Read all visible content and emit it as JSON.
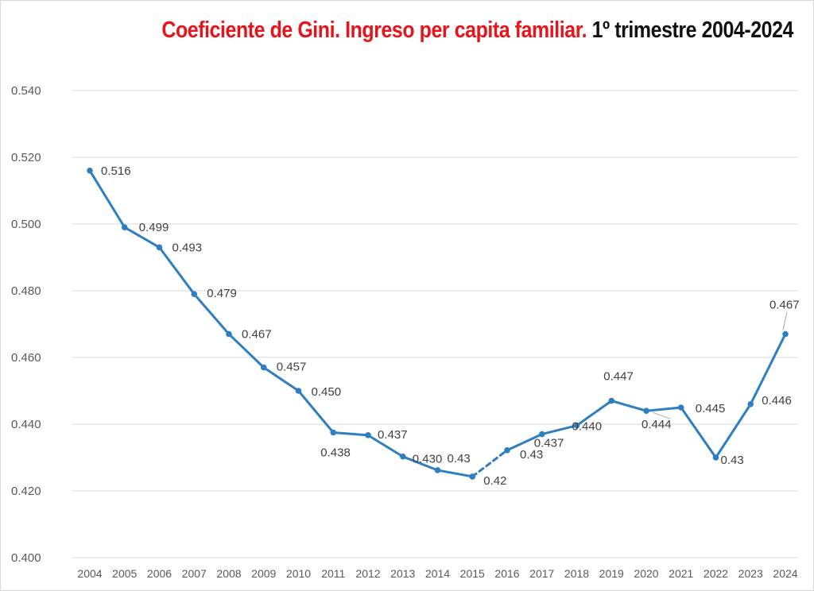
{
  "chart_data": {
    "type": "line",
    "title": "Coeficiente de Gini. Ingreso per capita familiar.",
    "subtitle": "1º trimestre 2004-2024",
    "xlabel": "",
    "ylabel": "",
    "ylim": [
      0.4,
      0.54
    ],
    "yticks": [
      "0.400",
      "0.420",
      "0.440",
      "0.460",
      "0.480",
      "0.500",
      "0.520",
      "0.540"
    ],
    "grid": true,
    "legend": "none",
    "categories": [
      "2004",
      "2005",
      "2006",
      "2007",
      "2008",
      "2009",
      "2010",
      "2011",
      "2012",
      "2013",
      "2014",
      "2015",
      "2016",
      "2017",
      "2018",
      "2019",
      "2020",
      "2021",
      "2022",
      "2023",
      "2024"
    ],
    "series": [
      {
        "values": [
          0.516,
          0.499,
          0.493,
          0.479,
          0.467,
          0.457,
          0.45,
          0.4375,
          0.4367,
          0.4303,
          0.4262,
          0.4243,
          0.4322,
          0.437,
          0.4396,
          0.447,
          0.444,
          0.445,
          0.43,
          0.446,
          0.467
        ],
        "labels": [
          "0.516",
          "0.499",
          "0.493",
          "0.479",
          "0.467",
          "0.457",
          "0.450",
          "0.438",
          "0.437",
          "0.430",
          "0.43",
          "0.42",
          "0.43",
          "0.437",
          "0.440",
          "0.447",
          "0.444",
          "0.445",
          "0.43",
          "0.446",
          "0.467"
        ],
        "dashed_segment": [
          "2015",
          "2016"
        ]
      }
    ],
    "colors": {
      "line": "#2e7fc2",
      "title_main": "#e8141b",
      "title_sub": "#111111",
      "grid": "#d9d9d9"
    }
  }
}
